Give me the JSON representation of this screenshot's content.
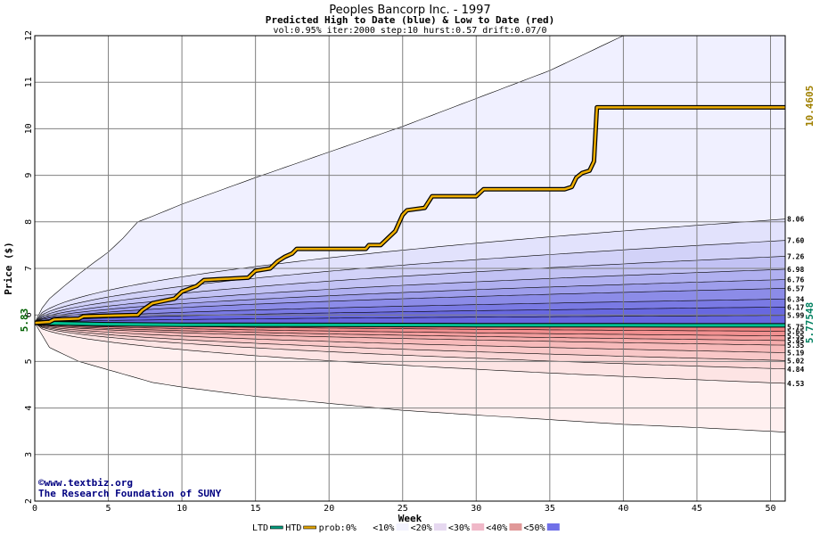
{
  "chart_data": {
    "type": "area",
    "title": "Peoples Bancorp Inc. - 1997",
    "subtitle": "Predicted High to Date (blue) &  Low to Date (red)",
    "params": "vol:0.95% iter:2000 step:10 hurst:0.57 drift:0.07/0",
    "xlabel": "Week",
    "ylabel": "Price ($)",
    "xlim": [
      0,
      51
    ],
    "ylim": [
      2,
      12
    ],
    "x_ticks": [
      0,
      5,
      10,
      15,
      20,
      25,
      30,
      35,
      40,
      45,
      50
    ],
    "y_ticks": [
      2,
      3,
      4,
      5,
      6,
      7,
      8,
      9,
      10,
      11,
      12
    ],
    "grid": true,
    "start_price": 5.83,
    "start_price_label": "5.83",
    "ltd_final_label": "5.77548",
    "htd_final_label": "10.4605",
    "upper_percentile_labels": [
      "8.06",
      "7.60",
      "7.26",
      "6.98",
      "6.76",
      "6.57",
      "6.34",
      "6.17",
      "5.99"
    ],
    "lower_percentile_labels": [
      "5.75",
      "5.65",
      "5.55",
      "5.45",
      "5.35",
      "5.19",
      "5.02",
      "4.84",
      "4.53"
    ],
    "envelope_upper": [
      [
        0,
        5.83
      ],
      [
        0.5,
        6.15
      ],
      [
        1,
        6.35
      ],
      [
        2,
        6.62
      ],
      [
        3,
        6.88
      ],
      [
        4,
        7.12
      ],
      [
        5,
        7.35
      ],
      [
        6,
        7.65
      ],
      [
        7,
        8.0
      ],
      [
        8,
        8.12
      ],
      [
        10,
        8.38
      ],
      [
        15,
        8.95
      ],
      [
        20,
        9.5
      ],
      [
        25,
        10.05
      ],
      [
        30,
        10.65
      ],
      [
        35,
        11.25
      ],
      [
        38,
        11.7
      ],
      [
        40,
        12.0
      ],
      [
        51,
        12.0
      ]
    ],
    "envelope_lower": [
      [
        0,
        5.83
      ],
      [
        1,
        5.3
      ],
      [
        2,
        5.15
      ],
      [
        3,
        5.0
      ],
      [
        5,
        4.82
      ],
      [
        8,
        4.55
      ],
      [
        10,
        4.45
      ],
      [
        15,
        4.25
      ],
      [
        20,
        4.1
      ],
      [
        25,
        3.95
      ],
      [
        30,
        3.85
      ],
      [
        35,
        3.75
      ],
      [
        40,
        3.65
      ],
      [
        45,
        3.58
      ],
      [
        50,
        3.5
      ],
      [
        51,
        3.48
      ]
    ],
    "blue_band_finals": [
      8.06,
      7.6,
      7.26,
      6.98,
      6.76,
      6.57,
      6.34,
      6.17,
      5.99
    ],
    "red_band_finals": [
      5.75,
      5.65,
      5.55,
      5.45,
      5.35,
      5.19,
      5.02,
      4.84,
      4.53
    ],
    "ltd": {
      "name": "LTD",
      "points": [
        [
          0,
          5.83
        ],
        [
          5,
          5.8
        ],
        [
          10,
          5.79
        ],
        [
          20,
          5.785
        ],
        [
          30,
          5.78
        ],
        [
          40,
          5.777
        ],
        [
          51,
          5.77548
        ]
      ]
    },
    "htd": {
      "name": "HTD",
      "points": [
        [
          0,
          5.83
        ],
        [
          1,
          5.85
        ],
        [
          1.3,
          5.9
        ],
        [
          3,
          5.92
        ],
        [
          3.3,
          5.97
        ],
        [
          7,
          6.0
        ],
        [
          7.3,
          6.1
        ],
        [
          8,
          6.25
        ],
        [
          9.5,
          6.35
        ],
        [
          10,
          6.5
        ],
        [
          11,
          6.62
        ],
        [
          11.5,
          6.75
        ],
        [
          14.5,
          6.8
        ],
        [
          15,
          6.95
        ],
        [
          16,
          7.0
        ],
        [
          16.5,
          7.15
        ],
        [
          17,
          7.25
        ],
        [
          17.5,
          7.32
        ],
        [
          17.8,
          7.42
        ],
        [
          22.5,
          7.42
        ],
        [
          22.7,
          7.5
        ],
        [
          23.5,
          7.5
        ],
        [
          24,
          7.65
        ],
        [
          24.5,
          7.8
        ],
        [
          25,
          8.15
        ],
        [
          25.3,
          8.25
        ],
        [
          26.5,
          8.3
        ],
        [
          27,
          8.55
        ],
        [
          30,
          8.55
        ],
        [
          30.5,
          8.7
        ],
        [
          36,
          8.7
        ],
        [
          36.5,
          8.75
        ],
        [
          36.8,
          8.95
        ],
        [
          37.2,
          9.05
        ],
        [
          37.7,
          9.1
        ],
        [
          38,
          9.3
        ],
        [
          38.2,
          10.46
        ],
        [
          51,
          10.4605
        ]
      ]
    },
    "legend": [
      {
        "label": "LTD",
        "kind": "line",
        "color": "#00a080"
      },
      {
        "label": "HTD",
        "kind": "line",
        "color": "#e8a800"
      },
      {
        "label": "prob:0%",
        "kind": "swatch",
        "color": "#ffffff"
      },
      {
        "label": "<10%",
        "kind": "swatch",
        "color": "#f2f2fe"
      },
      {
        "label": "<20%",
        "kind": "swatch",
        "color": "#e6d8f0"
      },
      {
        "label": "<30%",
        "kind": "swatch",
        "color": "#f0b8c8"
      },
      {
        "label": "<40%",
        "kind": "swatch",
        "color": "#e09898"
      },
      {
        "label": "<50%",
        "kind": "swatch",
        "color": "#7070e8"
      }
    ],
    "legend_sep": "<",
    "colors": {
      "blue_bands": [
        "#f0f0ff",
        "#e2e2fc",
        "#d2d2f8",
        "#c2c2f4",
        "#b0b0f0",
        "#9e9eec",
        "#8c8ce8",
        "#7a7ae4",
        "#6868e0"
      ],
      "red_bands": [
        "#fff0f0",
        "#fde4e4",
        "#fbd6d6",
        "#f9c8c8",
        "#f7baba",
        "#f5acac",
        "#f39e9e",
        "#f19090",
        "#ef8282"
      ],
      "grid": "#808080",
      "htd_border": "#000000",
      "ltd_label": "#008060",
      "htd_label": "#a08000",
      "start_label": "#006000"
    }
  },
  "credits": {
    "line1": "©www.textbiz.org",
    "line2": "The Research Foundation of SUNY"
  }
}
